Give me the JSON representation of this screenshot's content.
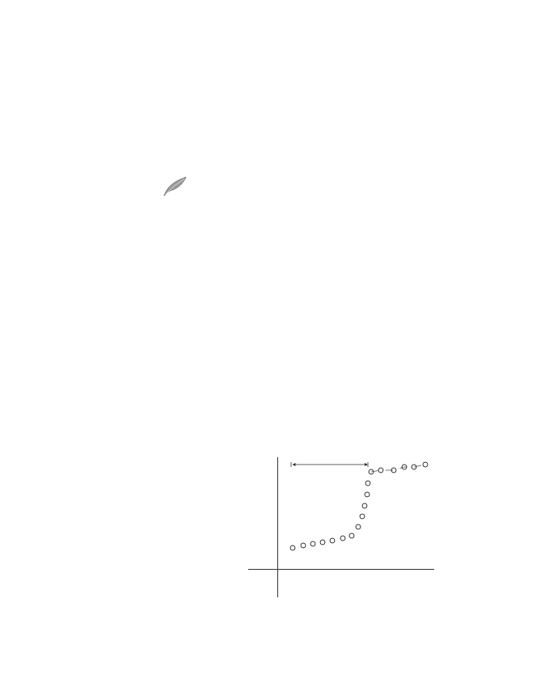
{
  "chart_data": {
    "type": "scatter",
    "series": [
      {
        "x": [
          19,
          32,
          44,
          56,
          68,
          81,
          92,
          100,
          105,
          108,
          111,
          112
        ],
        "values": [
          26,
          29,
          31,
          33,
          35,
          38,
          41,
          52,
          65,
          78,
          92,
          106
        ],
        "marker": "open-circle",
        "line_style": "none"
      },
      {
        "x": [
          116,
          128,
          144,
          157,
          169,
          183
        ],
        "values": [
          120,
          122,
          122,
          126,
          126,
          129
        ],
        "marker": "open-circle",
        "line_style": "dash"
      }
    ],
    "bracket": {
      "x0": 17,
      "x1": 112,
      "y": 129
    },
    "xlim": [
      -36,
      194
    ],
    "ylim": [
      -35,
      138
    ],
    "xticks": [],
    "yticks": [],
    "grid": false,
    "tick_labels": false
  }
}
